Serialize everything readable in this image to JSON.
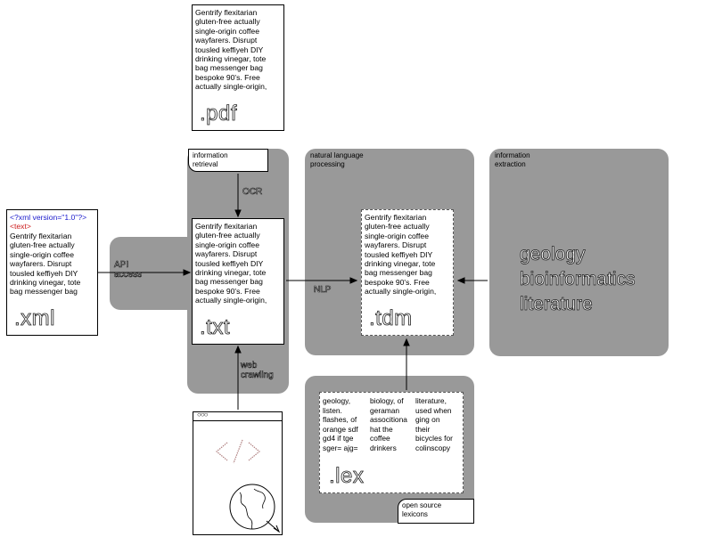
{
  "documents": {
    "pdf": {
      "text": "Gentrify flexitarian\ngluten-free actually\nsingle-origin coffee\nwayfarers. Disrupt\ntousled keffiyeh DIY\ndrinking vinegar, tote\nbag messenger bag\nbespoke 90's. Free\nactually single-origin,",
      "ext": ".pdf"
    },
    "xml": {
      "decl": "<?xml version=\"1.0\"?>",
      "tag": "<text>",
      "text": "Gentrify flexitarian\ngluten-free actually\nsingle-origin coffee\nwayfarers. Disrupt\ntousled keffiyeh DIY\ndrinking vinegar, tote\nbag messenger bag",
      "ext": ".xml"
    },
    "txt": {
      "text": "Gentrify flexitarian\ngluten-free actually\nsingle-origin coffee\nwayfarers. Disrupt\ntousled keffiyeh DIY\ndrinking vinegar, tote\nbag messenger bag\nbespoke 90's. Free\nactually single-origin,",
      "ext": ".txt"
    },
    "tdm": {
      "text": "Gentrify flexitarian\ngluten-free actually\nsingle-origin coffee\nwayfarers. Disrupt\ntousled keffiyeh DIY\ndrinking vinegar, tote\nbag messenger bag\nbespoke 90's. Free\nactually single-origin,",
      "ext": ".tdm"
    },
    "lex": {
      "col1": "geology,\nlisten.\nflashes, of\norange sdf\ngd4 if tge\nsger= ajg=",
      "col2": "biology, of\ngeraman\nassocitiona\nhat the\ncoffee\ndrinkers",
      "col3": "literature,\nused when\nging on\ntheir\nbicycles for\ncolinscopy",
      "ext": ".lex"
    }
  },
  "stages": {
    "ir": "information\nretrieval",
    "nlp": "natural language\nprocessing",
    "ie": "information\nextraction",
    "lexicons": "open source\nlexicons"
  },
  "arrow_labels": {
    "ocr": "OCR",
    "api": "API\naccess",
    "nlp": "NLP",
    "web": "web\ncrawling"
  },
  "topics": "geology\nbioinformatics\nliterature",
  "colors": {
    "panel": "#999999",
    "xml_decl": "#1a1acc",
    "xml_tag": "#cc1a1a"
  }
}
